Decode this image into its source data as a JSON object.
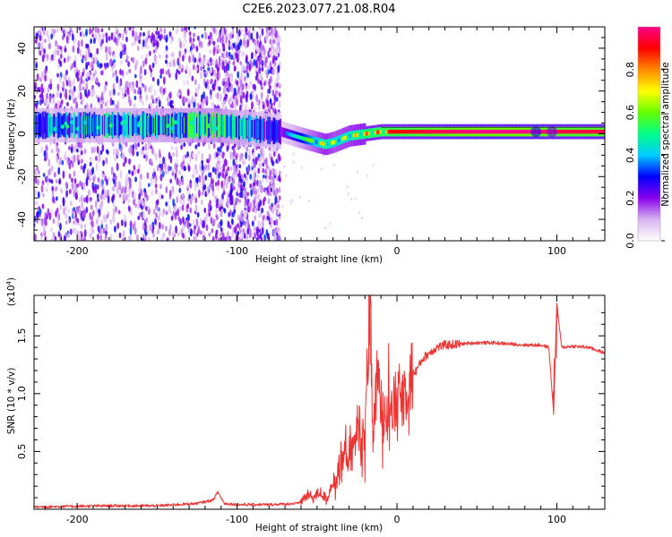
{
  "title": "C2E6.2023.077.21.08.R04",
  "chart_data": [
    {
      "type": "heatmap",
      "xlabel": "Height of straight line (km)",
      "ylabel": "Frequency (Hz)",
      "xlim": [
        -227,
        130
      ],
      "ylim": [
        -50,
        50
      ],
      "xticks": [
        -200,
        -100,
        0,
        100
      ],
      "xtick_labels": [
        "-200",
        "-100",
        "0",
        "100"
      ],
      "yticks": [
        -40,
        -20,
        0,
        20,
        40
      ],
      "ytick_labels": [
        "-40",
        "-20",
        "0",
        "20",
        "40"
      ],
      "colorbar": {
        "label": "Normalized spectral amplitude",
        "range": [
          0,
          1
        ],
        "ticks": [
          0.0,
          0.2,
          0.4,
          0.6,
          0.8
        ],
        "tick_labels": [
          "0.0",
          "0.2",
          "0.4",
          "0.6",
          "0.8"
        ],
        "colors": [
          "#ffffff",
          "#d8b4f0",
          "#8800ee",
          "#0000ff",
          "#00ccff",
          "#00ff88",
          "#66ff00",
          "#ffff00",
          "#ff8800",
          "#ff0000",
          "#ff0088"
        ]
      },
      "scatter_regions": [
        {
          "x_range": [
            -227,
            -113
          ],
          "density": "medium"
        },
        {
          "x_range": [
            -113,
            -73
          ],
          "density": "high"
        }
      ],
      "gap_region": {
        "x_range": [
          -113,
          -110
        ]
      },
      "ridge": {
        "x": [
          -227,
          -200,
          -150,
          -113,
          -73,
          -60,
          -50,
          -45,
          -40,
          -30,
          -20,
          -10,
          0,
          20,
          50,
          80,
          100,
          130
        ],
        "freq": [
          4,
          4,
          4,
          4,
          1,
          -2,
          -4,
          -5,
          -4,
          -1,
          0,
          1,
          1,
          1,
          1,
          1,
          1,
          1
        ],
        "amplitude": [
          0.35,
          0.4,
          0.45,
          0.5,
          0.3,
          0.5,
          0.7,
          0.8,
          0.7,
          0.75,
          0.85,
          0.9,
          0.9,
          0.95,
          1.0,
          1.0,
          0.95,
          0.95
        ]
      }
    },
    {
      "type": "line",
      "xlabel": "Height of straight line (km)",
      "ylabel": "SNR (10 * v/v)",
      "yscale_label": "(x10",
      "yscale_exp": "4",
      "yscale_close": ")",
      "xlim": [
        -227,
        130
      ],
      "ylim": [
        0,
        1.85
      ],
      "xticks": [
        -200,
        -100,
        0,
        100
      ],
      "xtick_labels": [
        "-200",
        "-100",
        "0",
        "100"
      ],
      "yticks": [
        0.5,
        1.0,
        1.5
      ],
      "ytick_labels": [
        "0.5",
        "1.0",
        "1.5"
      ],
      "color": "#ee3333",
      "series": [
        {
          "name": "SNR",
          "x": [
            -227,
            -180,
            -150,
            -125,
            -115,
            -112,
            -108,
            -100,
            -80,
            -62,
            -56,
            -52,
            -48,
            -44,
            -40,
            -36,
            -32,
            -28,
            -24,
            -20,
            -17,
            -15,
            -12,
            -9,
            -6,
            -3,
            0,
            4,
            8,
            12,
            16,
            20,
            25,
            30,
            40,
            50,
            60,
            70,
            80,
            90,
            95,
            98,
            100,
            103,
            110,
            120,
            130
          ],
          "y": [
            0.02,
            0.03,
            0.03,
            0.05,
            0.08,
            0.15,
            0.05,
            0.04,
            0.04,
            0.05,
            0.12,
            0.1,
            0.15,
            0.08,
            0.25,
            0.3,
            0.5,
            0.45,
            0.75,
            0.55,
            1.85,
            0.65,
            1.15,
            0.8,
            1.05,
            0.85,
            0.95,
            1.0,
            1.15,
            1.2,
            1.3,
            1.35,
            1.4,
            1.42,
            1.43,
            1.44,
            1.44,
            1.43,
            1.42,
            1.42,
            1.4,
            0.83,
            1.78,
            1.4,
            1.41,
            1.4,
            1.35
          ]
        }
      ]
    }
  ]
}
